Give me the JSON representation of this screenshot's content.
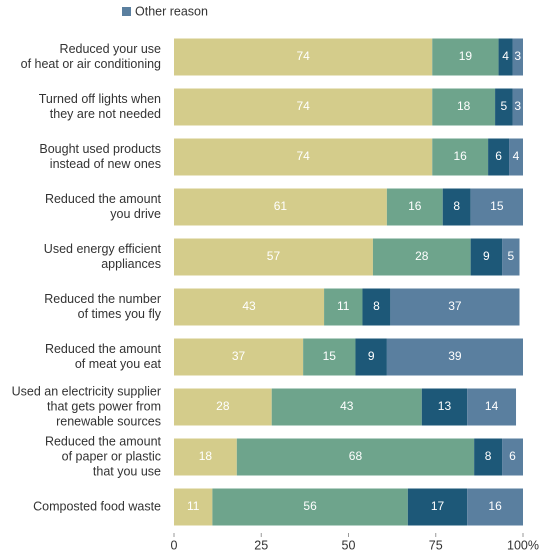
{
  "chart_data": {
    "type": "stacked-bar-horizontal",
    "categories": [
      [
        "Reduced your use",
        "of heat or air conditioning"
      ],
      [
        "Turned off lights when",
        "they are not needed"
      ],
      [
        "Bought used products",
        "instead of new ones"
      ],
      [
        "Reduced the amount",
        "you drive"
      ],
      [
        "Used energy efficient",
        "appliances"
      ],
      [
        "Reduced the number",
        "of times you fly"
      ],
      [
        "Reduced the amount",
        "of meat you eat"
      ],
      [
        "Used an electricity supplier",
        "that gets power from",
        "renewable sources"
      ],
      [
        "Reduced the amount",
        "of paper or plastic",
        "that you use"
      ],
      [
        "Composted food waste"
      ]
    ],
    "series": [
      {
        "color": "#d4cc8b",
        "values": [
          74,
          74,
          74,
          61,
          57,
          43,
          37,
          28,
          18,
          11
        ]
      },
      {
        "color": "#6ea48c",
        "values": [
          19,
          18,
          16,
          16,
          28,
          11,
          15,
          43,
          68,
          56
        ]
      },
      {
        "color": "#1d5878",
        "values": [
          4,
          5,
          6,
          8,
          9,
          8,
          9,
          13,
          8,
          17
        ]
      },
      {
        "name": "Other reason",
        "color": "#5a7f9f",
        "values": [
          3,
          3,
          4,
          15,
          5,
          37,
          39,
          14,
          6,
          16
        ]
      }
    ],
    "xlim": [
      0,
      100
    ],
    "xticks": [
      0,
      25,
      50,
      75,
      {
        "value": 100,
        "label": "100%"
      }
    ]
  }
}
